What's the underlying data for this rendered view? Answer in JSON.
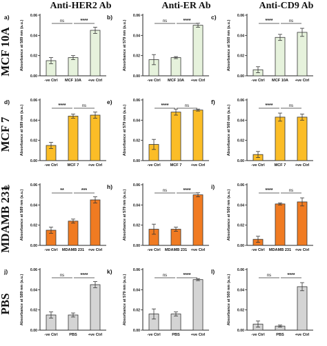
{
  "column_titles": [
    "Anti-HER2 Ab",
    "Anti-ER Ab",
    "Anti-CD9 Ab"
  ],
  "row_labels": [
    "MCF 10A",
    "MCF 7",
    "MDAMB 231",
    "PBS"
  ],
  "colors": {
    "neg_ctrl_edge": "#333333",
    "row_fills": [
      "#e6f2dc",
      "#fbbd27",
      "#f07b22",
      "#d4d4d4"
    ],
    "axis": "#222222"
  },
  "chart_data": [
    {
      "panel": "a)",
      "type": "bar",
      "ylabel": "Absorbance at 589 nm (a.u.)",
      "ylim": [
        0,
        0.06
      ],
      "yticks": [
        "0.00",
        "0.02",
        "0.04",
        "0.06"
      ],
      "categories": [
        "-ve Ctrl",
        "MCF 10A",
        "+ve Ctrl"
      ],
      "values": [
        0.015,
        0.018,
        0.045
      ],
      "errors": [
        0.003,
        0.002,
        0.003
      ],
      "significance": [
        {
          "between": [
            0,
            1
          ],
          "label": "ns"
        },
        {
          "between": [
            1,
            2
          ],
          "label": "****"
        }
      ]
    },
    {
      "panel": "b)",
      "type": "bar",
      "ylabel": "Absorbance at 579 nm (a.u.)",
      "ylim": [
        0,
        0.06
      ],
      "yticks": [
        "0.00",
        "0.02",
        "0.04",
        "0.06"
      ],
      "categories": [
        "-ve Ctrl",
        "MCF 10A",
        "+ve Ctrl"
      ],
      "values": [
        0.016,
        0.018,
        0.05
      ],
      "errors": [
        0.005,
        0.001,
        0.002
      ],
      "significance": [
        {
          "between": [
            0,
            1
          ],
          "label": "ns"
        },
        {
          "between": [
            1,
            2
          ],
          "label": "****"
        }
      ]
    },
    {
      "panel": "c)",
      "type": "bar",
      "ylabel": "Absorbance at 560 nm (a.u.)",
      "ylim": [
        0,
        0.06
      ],
      "yticks": [
        "0.00",
        "0.02",
        "0.04",
        "0.06"
      ],
      "categories": [
        "-ve Ctrl",
        "MCF 10A",
        "+ve Ctrl"
      ],
      "values": [
        0.006,
        0.038,
        0.043
      ],
      "errors": [
        0.003,
        0.003,
        0.004
      ],
      "significance": [
        {
          "between": [
            0,
            1
          ],
          "label": "****"
        },
        {
          "between": [
            1,
            2
          ],
          "label": "ns"
        }
      ]
    },
    {
      "panel": "d)",
      "type": "bar",
      "ylabel": "Absorbance at 589 nm (a.u.)",
      "ylim": [
        0,
        0.06
      ],
      "yticks": [
        "0.00",
        "0.02",
        "0.04",
        "0.06"
      ],
      "categories": [
        "-ve Ctrl",
        "MCF 7",
        "+ve Ctrl"
      ],
      "values": [
        0.015,
        0.044,
        0.045
      ],
      "errors": [
        0.003,
        0.002,
        0.003
      ],
      "significance": [
        {
          "between": [
            0,
            1
          ],
          "label": "****"
        },
        {
          "between": [
            1,
            2
          ],
          "label": "ns"
        }
      ]
    },
    {
      "panel": "e)",
      "type": "bar",
      "ylabel": "Absorbance at 579 nm (a.u.)",
      "ylim": [
        0,
        0.06
      ],
      "yticks": [
        "0.00",
        "0.02",
        "0.04",
        "0.06"
      ],
      "categories": [
        "-ve Ctrl",
        "MCF 7",
        "+ve Ctrl"
      ],
      "values": [
        0.016,
        0.048,
        0.05
      ],
      "errors": [
        0.005,
        0.003,
        0.001
      ],
      "significance": [
        {
          "between": [
            0,
            1
          ],
          "label": "****"
        },
        {
          "between": [
            1,
            2
          ],
          "label": "ns"
        }
      ]
    },
    {
      "panel": "f)",
      "type": "bar",
      "ylabel": "Absorbance at 560 nm (a.u.)",
      "ylim": [
        0,
        0.06
      ],
      "yticks": [
        "0.00",
        "0.02",
        "0.04",
        "0.06"
      ],
      "categories": [
        "-ve Ctrl",
        "MCF 7",
        "+ve Ctrl"
      ],
      "values": [
        0.006,
        0.043,
        0.043
      ],
      "errors": [
        0.003,
        0.004,
        0.003
      ],
      "significance": [
        {
          "between": [
            0,
            1
          ],
          "label": "****"
        },
        {
          "between": [
            1,
            2
          ],
          "label": "ns"
        }
      ]
    },
    {
      "panel": "g)",
      "type": "bar",
      "ylabel": "Absorbance at 589 nm (a.u.)",
      "ylim": [
        0,
        0.06
      ],
      "yticks": [
        "0.00",
        "0.02",
        "0.04",
        "0.06"
      ],
      "categories": [
        "-ve Ctrl",
        "MDAMB 231",
        "+ve Ctrl"
      ],
      "values": [
        0.015,
        0.024,
        0.045
      ],
      "errors": [
        0.003,
        0.002,
        0.003
      ],
      "significance": [
        {
          "between": [
            0,
            1
          ],
          "label": "**"
        },
        {
          "between": [
            1,
            2
          ],
          "label": "***"
        }
      ]
    },
    {
      "panel": "h)",
      "type": "bar",
      "ylabel": "Absorbance at 579 nm (a.u.)",
      "ylim": [
        0,
        0.06
      ],
      "yticks": [
        "0.00",
        "0.02",
        "0.04",
        "0.06"
      ],
      "categories": [
        "-ve Ctrl",
        "MDAMB 231",
        "+ve Ctrl"
      ],
      "values": [
        0.016,
        0.016,
        0.05
      ],
      "errors": [
        0.005,
        0.002,
        0.002
      ],
      "significance": [
        {
          "between": [
            0,
            1
          ],
          "label": "ns"
        },
        {
          "between": [
            1,
            2
          ],
          "label": "****"
        }
      ]
    },
    {
      "panel": "i)",
      "type": "bar",
      "ylabel": "Absorbance at 560 nm (a.u.)",
      "ylim": [
        0,
        0.06
      ],
      "yticks": [
        "0.00",
        "0.02",
        "0.04",
        "0.06"
      ],
      "categories": [
        "-ve Ctrl",
        "MDAMB 231",
        "+ve Ctrl"
      ],
      "values": [
        0.006,
        0.041,
        0.043
      ],
      "errors": [
        0.003,
        0.001,
        0.004
      ],
      "significance": [
        {
          "between": [
            0,
            1
          ],
          "label": "****"
        },
        {
          "between": [
            1,
            2
          ],
          "label": "ns"
        }
      ]
    },
    {
      "panel": "j)",
      "type": "bar",
      "ylabel": "Absorbance at 589 nm (a.u.)",
      "ylim": [
        0,
        0.06
      ],
      "yticks": [
        "0.00",
        "0.02",
        "0.04",
        "0.06"
      ],
      "categories": [
        "-ve Ctrl",
        "PBS",
        "+ve Ctrl"
      ],
      "values": [
        0.015,
        0.015,
        0.045
      ],
      "errors": [
        0.003,
        0.002,
        0.003
      ],
      "significance": [
        {
          "between": [
            0,
            1
          ],
          "label": "ns"
        },
        {
          "between": [
            1,
            2
          ],
          "label": "****"
        }
      ]
    },
    {
      "panel": "k)",
      "type": "bar",
      "ylabel": "Absorbance at 579 nm (a.u.)",
      "ylim": [
        0,
        0.06
      ],
      "yticks": [
        "0.00",
        "0.02",
        "0.04",
        "0.06"
      ],
      "categories": [
        "-ve Ctrl",
        "PBS",
        "+ve Ctrl"
      ],
      "values": [
        0.016,
        0.016,
        0.05
      ],
      "errors": [
        0.005,
        0.002,
        0.001
      ],
      "significance": [
        {
          "between": [
            0,
            1
          ],
          "label": "ns"
        },
        {
          "between": [
            1,
            2
          ],
          "label": "****"
        }
      ]
    },
    {
      "panel": "l)",
      "type": "bar",
      "ylabel": "Absorbance at 560 nm (a.u.)",
      "ylim": [
        0,
        0.06
      ],
      "yticks": [
        "0.00",
        "0.02",
        "0.04",
        "0.06"
      ],
      "categories": [
        "-ve Ctrl",
        "PBS",
        "+ve Ctrl"
      ],
      "values": [
        0.006,
        0.004,
        0.043
      ],
      "errors": [
        0.003,
        0.001,
        0.004
      ],
      "significance": [
        {
          "between": [
            0,
            1
          ],
          "label": "ns"
        },
        {
          "between": [
            1,
            2
          ],
          "label": "****"
        }
      ]
    }
  ]
}
